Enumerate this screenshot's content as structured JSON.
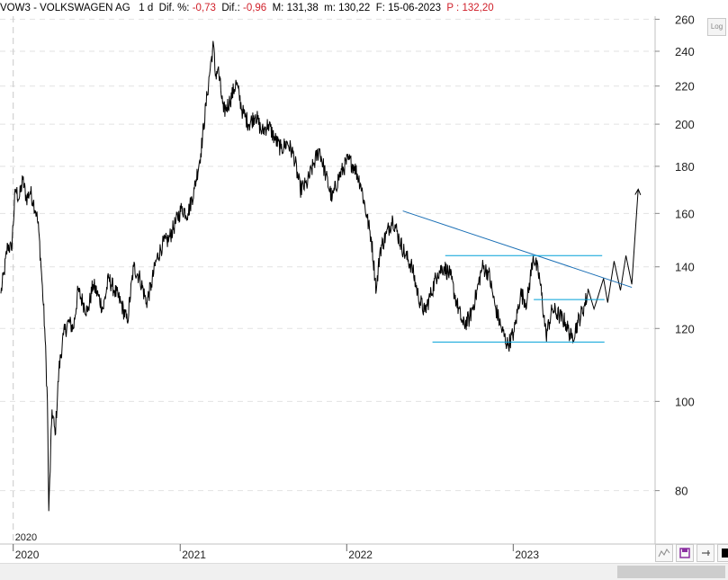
{
  "header": {
    "symbol": "VOW3",
    "separator": " - ",
    "name": "VOLKSWAGEN AG",
    "timeframe": "1 d",
    "dif_pct_label": "Dif. %:",
    "dif_pct_value": "-0,73",
    "dif_label": "Dif.:",
    "dif_value": "-0,96",
    "high_label": "M:",
    "high_value": "131,38",
    "low_label": "m:",
    "low_value": "130,22",
    "date_label": "F:",
    "date_value": "15-06-2023",
    "price_label": "P :",
    "price_value": "132,20"
  },
  "log_button_label": "Log",
  "colors": {
    "price": "#000000",
    "trendline": "#1a6fb5",
    "support": "#00a0d8",
    "axis": "#c0c0c0",
    "negative": "#d0202a"
  },
  "toolbar": {
    "icons": [
      "trend-icon",
      "save-icon",
      "pin-icon",
      "color-square-icon"
    ]
  },
  "chart_data": {
    "type": "line",
    "title": "",
    "scale": "log",
    "ylim": [
      70,
      262
    ],
    "yticks": [
      80,
      100,
      120,
      140,
      160,
      180,
      200,
      220,
      240,
      260
    ],
    "xlim": [
      "2019-12-03",
      "2023-11-08"
    ],
    "xticks": [
      {
        "label": "2020",
        "date": "2020-01-01"
      },
      {
        "label": "2021",
        "date": "2021-01-01"
      },
      {
        "label": "2022",
        "date": "2022-01-01"
      },
      {
        "label": "2023",
        "date": "2023-01-01"
      }
    ],
    "marker_label": {
      "label": "2020",
      "date": "2020-01-01"
    },
    "series": [
      {
        "x": [
          "2019-12-05",
          "2019-12-12",
          "2019-12-20",
          "2019-12-28",
          "2020-01-06",
          "2020-01-14",
          "2020-01-22",
          "2020-01-30",
          "2020-02-07",
          "2020-02-14",
          "2020-02-21",
          "2020-02-26",
          "2020-03-03",
          "2020-03-10",
          "2020-03-16",
          "2020-03-19",
          "2020-03-26",
          "2020-04-02",
          "2020-04-10",
          "2020-04-20",
          "2020-05-01",
          "2020-05-12",
          "2020-05-22",
          "2020-06-02",
          "2020-06-12",
          "2020-06-24",
          "2020-07-06",
          "2020-07-16",
          "2020-07-28",
          "2020-08-10",
          "2020-08-24",
          "2020-09-07",
          "2020-09-21",
          "2020-10-05",
          "2020-10-19",
          "2020-10-30",
          "2020-11-09",
          "2020-11-23",
          "2020-12-07",
          "2020-12-21",
          "2021-01-04",
          "2021-01-18",
          "2021-02-01",
          "2021-02-15",
          "2021-03-01",
          "2021-03-10",
          "2021-03-15",
          "2021-03-19",
          "2021-03-25",
          "2021-04-06",
          "2021-04-20",
          "2021-05-04",
          "2021-05-18",
          "2021-06-01",
          "2021-06-15",
          "2021-06-29",
          "2021-07-13",
          "2021-07-27",
          "2021-08-10",
          "2021-08-24",
          "2021-09-07",
          "2021-09-21",
          "2021-10-05",
          "2021-10-19",
          "2021-11-02",
          "2021-11-16",
          "2021-11-30",
          "2021-12-14",
          "2022-01-04",
          "2022-01-18",
          "2022-02-01",
          "2022-02-15",
          "2022-02-24",
          "2022-03-07",
          "2022-03-15",
          "2022-03-29",
          "2022-04-12",
          "2022-04-26",
          "2022-05-10",
          "2022-05-24",
          "2022-06-07",
          "2022-06-21",
          "2022-07-05",
          "2022-07-19",
          "2022-08-02",
          "2022-08-16",
          "2022-08-30",
          "2022-09-13",
          "2022-09-27",
          "2022-10-11",
          "2022-10-25",
          "2022-11-08",
          "2022-11-22",
          "2022-12-06",
          "2022-12-20",
          "2023-01-03",
          "2023-01-17",
          "2023-01-31",
          "2023-02-14",
          "2023-02-28",
          "2023-03-14",
          "2023-03-28",
          "2023-04-11",
          "2023-04-25",
          "2023-05-09",
          "2023-05-23",
          "2023-06-06",
          "2023-06-15"
        ],
        "y": [
          131,
          138,
          148,
          146,
          170,
          166,
          174,
          166,
          169,
          165,
          160,
          153,
          138,
          120,
          100,
          76,
          98,
          92,
          108,
          118,
          122,
          120,
          132,
          128,
          125,
          134,
          130,
          126,
          136,
          132,
          128,
          122,
          140,
          136,
          128,
          134,
          142,
          148,
          150,
          156,
          162,
          160,
          170,
          186,
          215,
          235,
          244,
          226,
          230,
          206,
          212,
          222,
          206,
          200,
          205,
          196,
          200,
          193,
          188,
          191,
          185,
          170,
          172,
          180,
          188,
          176,
          166,
          175,
          183,
          180,
          172,
          158,
          150,
          132,
          146,
          152,
          158,
          150,
          144,
          140,
          130,
          125,
          131,
          138,
          140,
          137,
          128,
          121,
          123,
          130,
          140,
          138,
          127,
          120,
          115,
          119,
          131,
          128,
          144,
          136,
          118,
          126,
          124,
          122,
          117,
          122,
          127,
          132
        ]
      }
    ],
    "projection": {
      "x": [
        "2023-06-15",
        "2023-06-27",
        "2023-07-06",
        "2023-07-18",
        "2023-07-27",
        "2023-08-10",
        "2023-08-24",
        "2023-09-05",
        "2023-09-18",
        "2023-10-02"
      ],
      "y": [
        132,
        126,
        130,
        136,
        128,
        142,
        132,
        144,
        134,
        170
      ]
    },
    "annotations": [
      {
        "type": "trendline",
        "points": [
          [
            "2022-05-04",
            161
          ],
          [
            "2023-09-18",
            133
          ]
        ]
      },
      {
        "type": "hline",
        "y": 144,
        "x": [
          "2022-08-05",
          "2023-07-15"
        ]
      },
      {
        "type": "hline",
        "y": 129,
        "x": [
          "2023-02-15",
          "2023-07-20"
        ]
      },
      {
        "type": "hline",
        "y": 116,
        "x": [
          "2022-07-08",
          "2023-07-20"
        ]
      }
    ]
  }
}
